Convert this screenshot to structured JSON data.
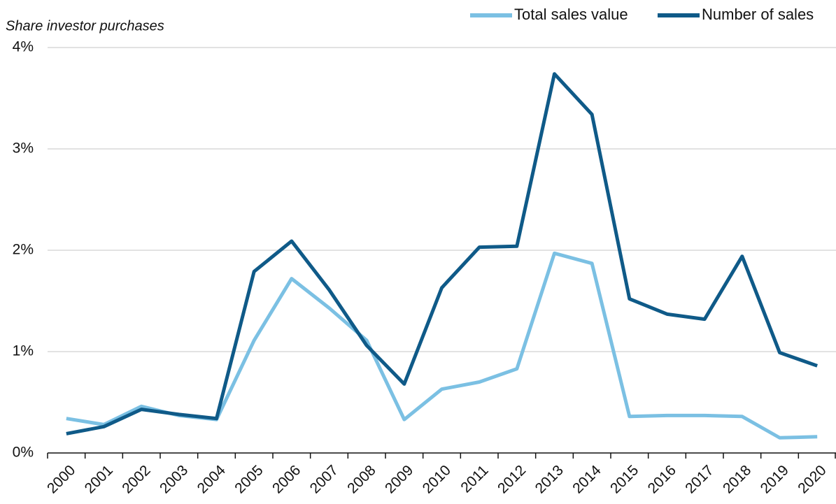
{
  "chart_data": {
    "type": "line",
    "y_label": "Share investor purchases",
    "categories": [
      "2000",
      "2001",
      "2002",
      "2003",
      "2004",
      "2005",
      "2006",
      "2007",
      "2008",
      "2009",
      "2010",
      "2011",
      "2012",
      "2013",
      "2014",
      "2015",
      "2016",
      "2017",
      "2018",
      "2019",
      "2020"
    ],
    "series": [
      {
        "name": "Total sales value",
        "color": "#7bc0e3",
        "values": [
          0.34,
          0.28,
          0.46,
          0.37,
          0.33,
          1.11,
          1.72,
          1.43,
          1.11,
          0.33,
          0.63,
          0.7,
          0.83,
          1.97,
          1.87,
          0.36,
          0.37,
          0.37,
          0.36,
          0.15,
          0.16
        ]
      },
      {
        "name": "Number of sales",
        "color": "#0f5a88",
        "values": [
          0.19,
          0.26,
          0.43,
          0.38,
          0.34,
          1.79,
          2.09,
          1.61,
          1.06,
          0.68,
          1.63,
          2.03,
          2.04,
          3.74,
          3.34,
          1.52,
          1.37,
          1.32,
          1.94,
          0.99,
          0.86
        ]
      }
    ],
    "ylim": [
      0,
      4
    ],
    "yticks": [
      {
        "value": 0,
        "label": "0%"
      },
      {
        "value": 1,
        "label": "1%"
      },
      {
        "value": 2,
        "label": "2%"
      },
      {
        "value": 3,
        "label": "3%"
      },
      {
        "value": 4,
        "label": "4%"
      }
    ],
    "grid": true,
    "legend": "top-right"
  }
}
